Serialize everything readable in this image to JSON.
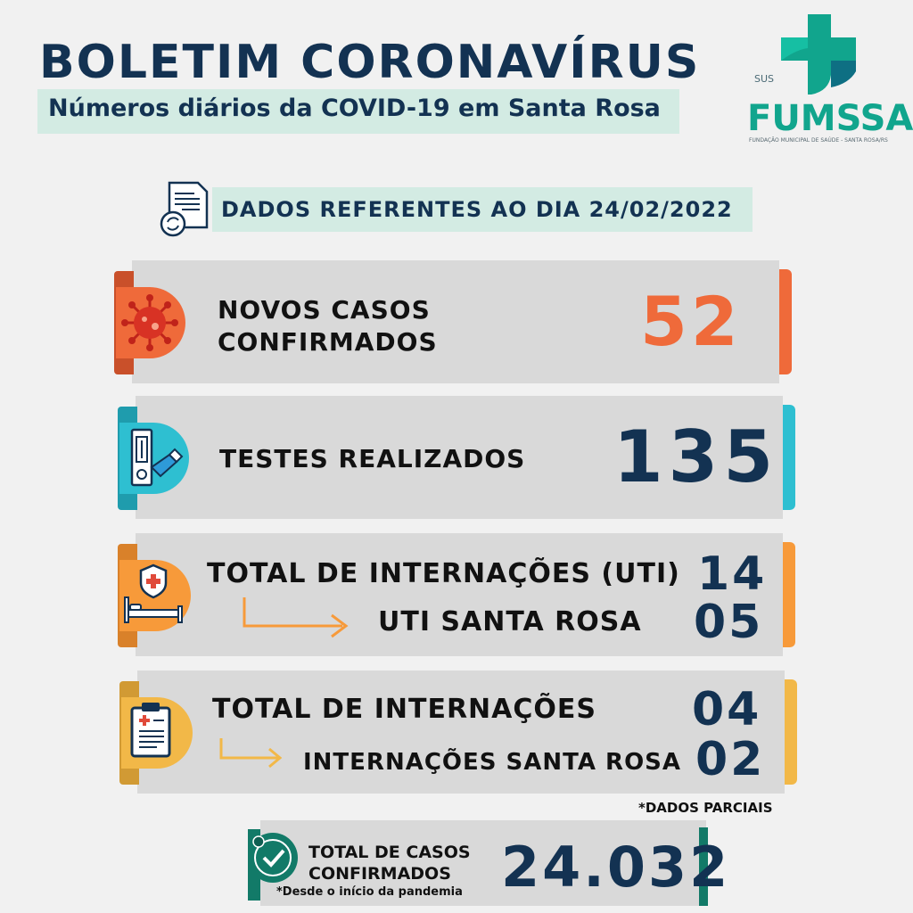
{
  "header": {
    "title": "BOLETIM CORONAVÍRUS",
    "subtitle": "Números diários da COVID-19 em Santa Rosa"
  },
  "logo": {
    "sus": "SUS",
    "name": "FUMSSAR",
    "tagline": "FUNDAÇÃO MUNICIPAL DE SAÚDE - SANTA ROSA/RS",
    "icon": "health-cross-logo"
  },
  "date_strip": {
    "text": "DADOS REFERENTES AO DIA 24/02/2022",
    "icon": "document-refresh-icon"
  },
  "cards": {
    "novos_casos": {
      "label_line1": "NOVOS CASOS",
      "label_line2": "CONFIRMADOS",
      "value": "52",
      "color": "#ef6a3a",
      "icon": "virus-icon"
    },
    "testes": {
      "label": "TESTES REALIZADOS",
      "value": "135",
      "color": "#2ebfd1",
      "icon": "test-kit-icon"
    },
    "uti": {
      "label": "TOTAL DE INTERNAÇÕES (UTI)",
      "value": "14",
      "sub_label": "UTI SANTA ROSA",
      "sub_value": "05",
      "color": "#f79a3a",
      "icon": "hospital-bed-icon"
    },
    "internacoes": {
      "label": "TOTAL DE INTERNAÇÕES",
      "value": "04",
      "sub_label": "INTERNAÇÕES SANTA ROSA",
      "sub_value": "02",
      "color": "#f2b848",
      "icon": "clipboard-icon"
    }
  },
  "note": "*DADOS PARCIAIS",
  "total": {
    "label_line1": "TOTAL DE CASOS",
    "label_line2": "CONFIRMADOS",
    "sub": "*Desde o início da pandemia",
    "value": "24.032",
    "color": "#127a68",
    "icon": "check-badge-icon"
  }
}
